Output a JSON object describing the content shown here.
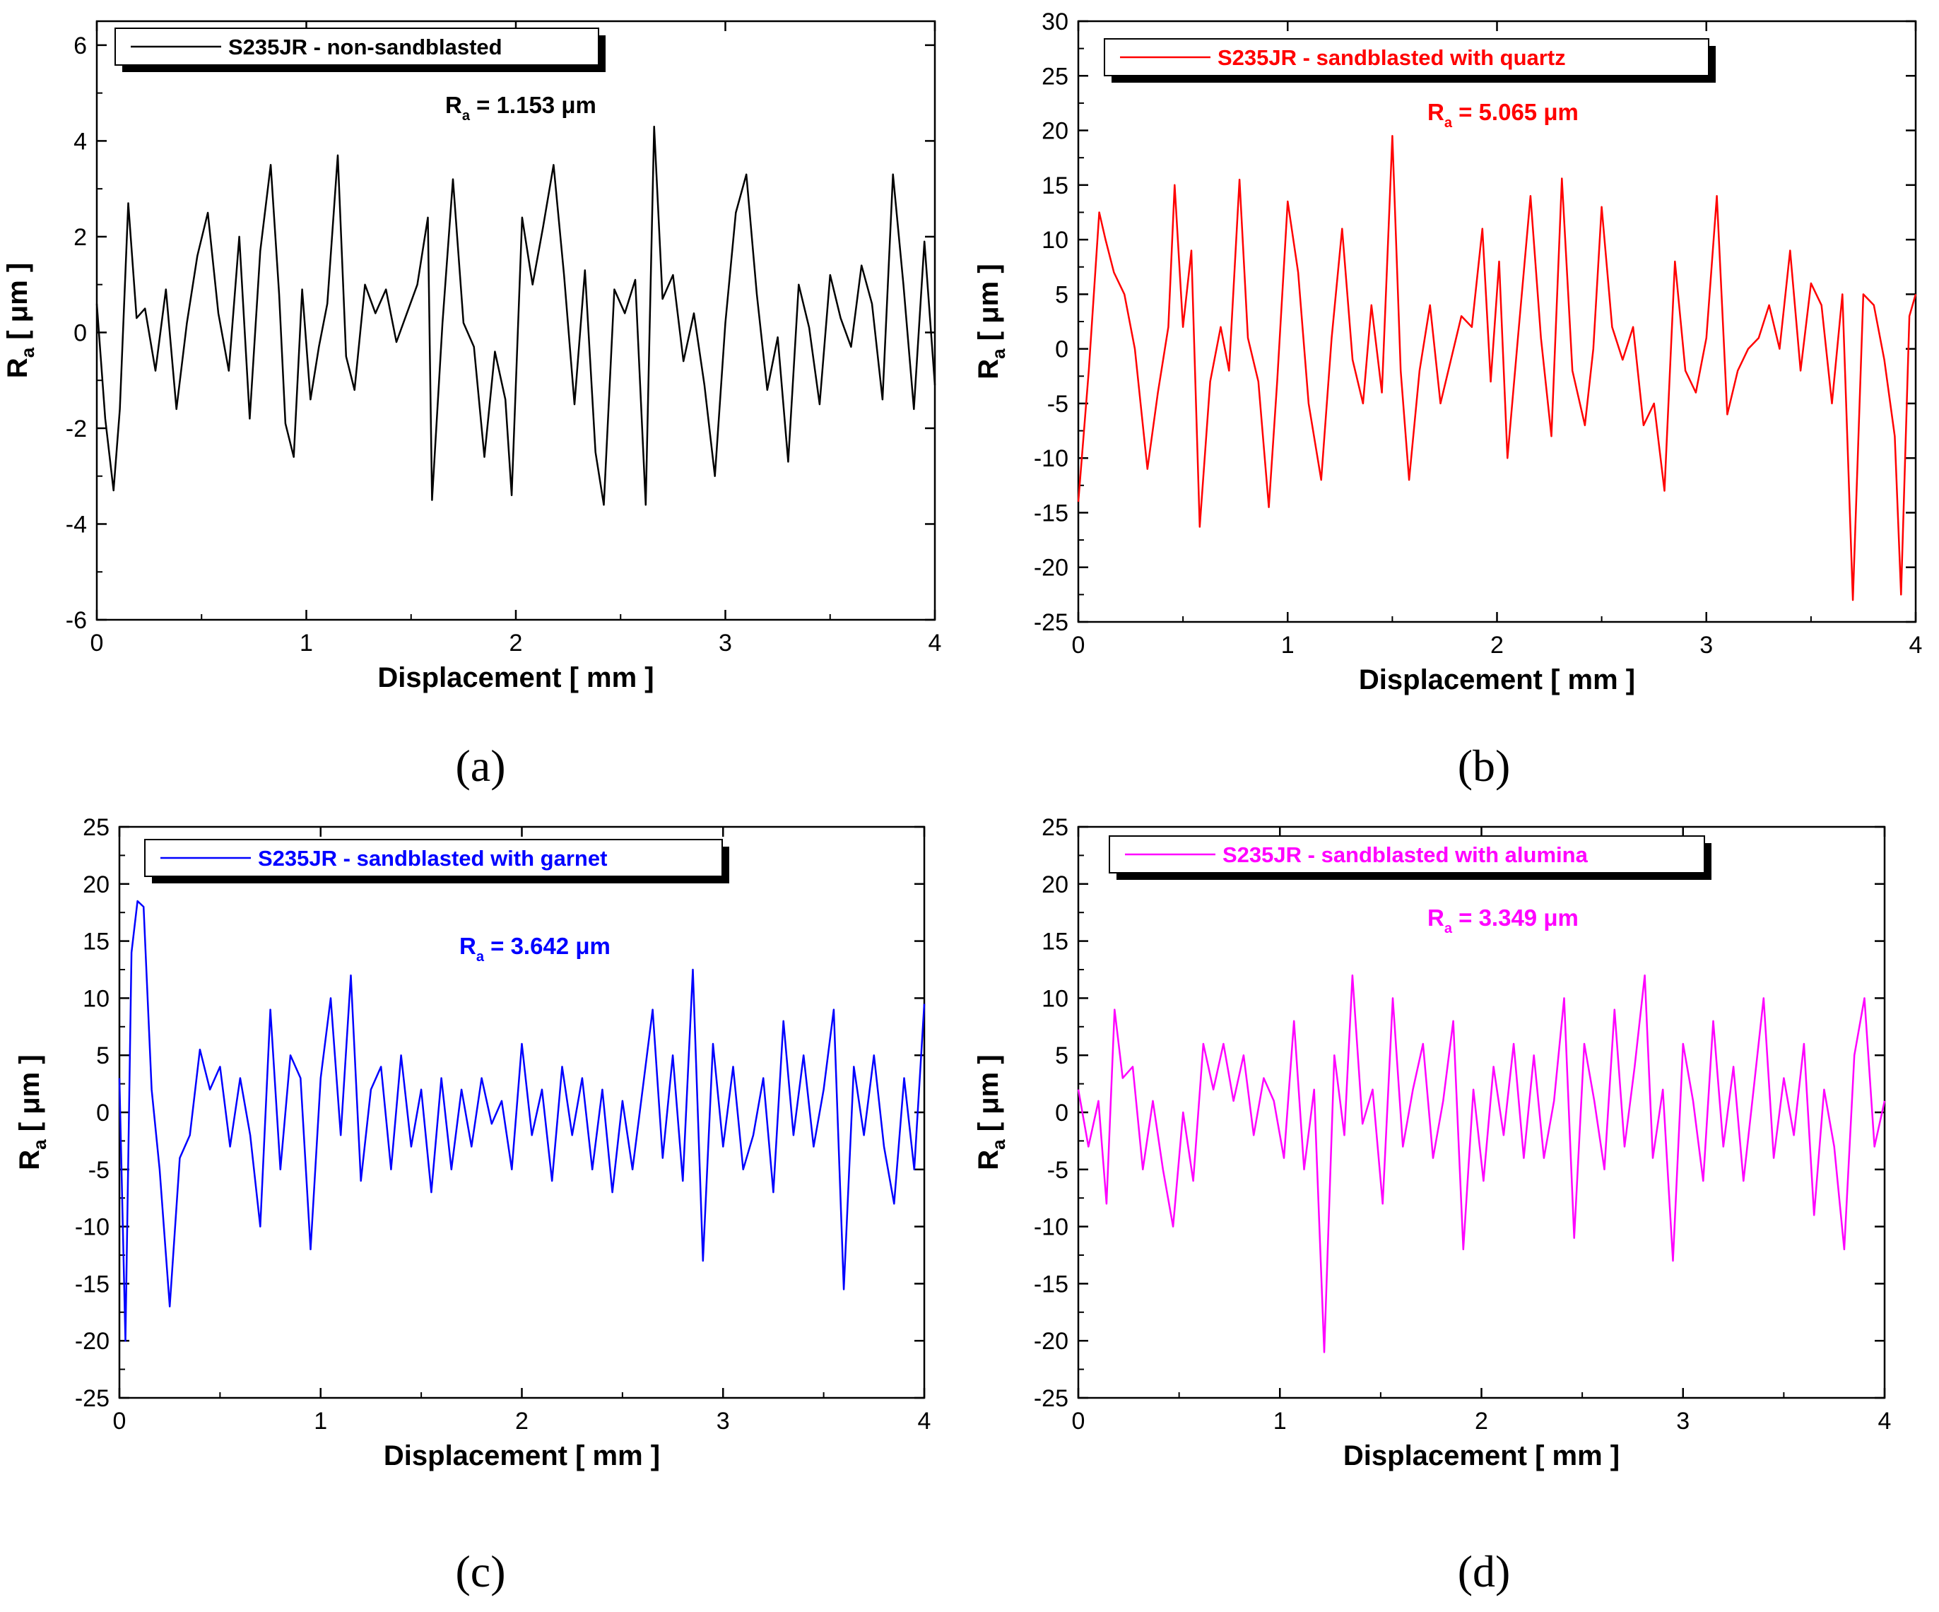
{
  "chart_data": [
    {
      "type": "line",
      "panel_label": "(a)",
      "legend": "S235JR - non-sandblasted",
      "color": "#000000",
      "ra_symbol": "R",
      "ra_sub": "a",
      "ra_value": " = 1.153 μm",
      "xlabel": "Displacement [ mm ]",
      "ylabel_main": "R",
      "ylabel_sub": "a",
      "ylabel_unit": " [ μm ]",
      "xlim": [
        0,
        4
      ],
      "ylim": [
        -6,
        6.5
      ],
      "xticks": [
        0,
        1,
        2,
        3,
        4
      ],
      "yticks": [
        -6,
        -4,
        -2,
        0,
        2,
        4,
        6
      ],
      "legend_position": "top-left",
      "series": [
        {
          "name": "S235JR - non-sandblasted",
          "x": [
            0,
            0.04,
            0.08,
            0.11,
            0.15,
            0.19,
            0.23,
            0.28,
            0.33,
            0.38,
            0.43,
            0.48,
            0.53,
            0.58,
            0.63,
            0.68,
            0.73,
            0.78,
            0.83,
            0.87,
            0.9,
            0.94,
            0.98,
            1.02,
            1.06,
            1.1,
            1.15,
            1.19,
            1.23,
            1.28,
            1.33,
            1.38,
            1.43,
            1.48,
            1.53,
            1.58,
            1.6,
            1.65,
            1.7,
            1.75,
            1.8,
            1.85,
            1.9,
            1.95,
            1.98,
            2.03,
            2.08,
            2.13,
            2.18,
            2.23,
            2.28,
            2.33,
            2.38,
            2.42,
            2.47,
            2.52,
            2.57,
            2.62,
            2.66,
            2.7,
            2.75,
            2.8,
            2.85,
            2.9,
            2.95,
            3.0,
            3.05,
            3.1,
            3.15,
            3.2,
            3.25,
            3.3,
            3.35,
            3.4,
            3.45,
            3.5,
            3.55,
            3.6,
            3.65,
            3.7,
            3.75,
            3.8,
            3.85,
            3.9,
            3.95,
            4.0
          ],
          "values": [
            0.6,
            -1.8,
            -3.3,
            -1.6,
            2.7,
            0.3,
            0.5,
            -0.8,
            0.9,
            -1.6,
            0.2,
            1.6,
            2.5,
            0.4,
            -0.8,
            2.0,
            -1.8,
            1.7,
            3.5,
            0.8,
            -1.9,
            -2.6,
            0.9,
            -1.4,
            -0.3,
            0.6,
            3.7,
            -0.5,
            -1.2,
            1.0,
            0.4,
            0.9,
            -0.2,
            0.4,
            1.0,
            2.4,
            -3.5,
            0.2,
            3.2,
            0.2,
            -0.3,
            -2.6,
            -0.4,
            -1.4,
            -3.4,
            2.4,
            1.0,
            2.2,
            3.5,
            1.2,
            -1.5,
            1.3,
            -2.5,
            -3.6,
            0.9,
            0.4,
            1.1,
            -3.6,
            4.3,
            0.7,
            1.2,
            -0.6,
            0.4,
            -1.1,
            -3.0,
            0.2,
            2.5,
            3.3,
            0.8,
            -1.2,
            -0.1,
            -2.7,
            1.0,
            0.1,
            -1.5,
            1.2,
            0.3,
            -0.3,
            1.4,
            0.6,
            -1.4,
            3.3,
            1.0,
            -1.6,
            1.9,
            -1.1
          ]
        }
      ]
    },
    {
      "type": "line",
      "panel_label": "(b)",
      "legend": "S235JR - sandblasted with quartz",
      "color": "#ff0000",
      "ra_symbol": "R",
      "ra_sub": "a",
      "ra_value": " = 5.065 μm",
      "xlabel": "Displacement [ mm ]",
      "ylabel_main": "R",
      "ylabel_sub": "a",
      "ylabel_unit": " [ μm ]",
      "xlim": [
        0,
        4
      ],
      "ylim": [
        -25,
        30
      ],
      "xticks": [
        0,
        1,
        2,
        3,
        4
      ],
      "yticks": [
        -25,
        -20,
        -15,
        -10,
        -5,
        0,
        5,
        10,
        15,
        20,
        25,
        30
      ],
      "legend_position": "top-left",
      "series": [
        {
          "name": "S235JR - sandblasted with quartz",
          "x": [
            0,
            0.05,
            0.1,
            0.13,
            0.17,
            0.22,
            0.27,
            0.33,
            0.38,
            0.43,
            0.46,
            0.5,
            0.54,
            0.58,
            0.63,
            0.68,
            0.72,
            0.77,
            0.81,
            0.86,
            0.91,
            0.95,
            1.0,
            1.05,
            1.1,
            1.16,
            1.21,
            1.26,
            1.31,
            1.36,
            1.4,
            1.45,
            1.5,
            1.54,
            1.58,
            1.63,
            1.68,
            1.73,
            1.78,
            1.83,
            1.88,
            1.93,
            1.97,
            2.01,
            2.05,
            2.1,
            2.16,
            2.21,
            2.26,
            2.31,
            2.36,
            2.42,
            2.46,
            2.5,
            2.55,
            2.6,
            2.65,
            2.7,
            2.75,
            2.8,
            2.85,
            2.9,
            2.95,
            3.0,
            3.05,
            3.1,
            3.15,
            3.2,
            3.25,
            3.3,
            3.35,
            3.4,
            3.45,
            3.5,
            3.55,
            3.6,
            3.65,
            3.7,
            3.75,
            3.8,
            3.85,
            3.9,
            3.93,
            3.97,
            4.0
          ],
          "values": [
            -14,
            -2,
            12.5,
            10,
            7,
            5,
            0,
            -11,
            -4,
            2,
            15,
            2,
            9,
            -16.3,
            -3,
            2,
            -2,
            15.5,
            1,
            -3,
            -14.5,
            -3,
            13.5,
            7,
            -5,
            -12,
            1,
            11,
            -1,
            -5,
            4,
            -4,
            19.5,
            -2,
            -12,
            -2,
            4,
            -5,
            -1,
            3,
            2,
            11,
            -3,
            8,
            -10,
            1,
            14,
            1,
            -8,
            15.6,
            -2,
            -7,
            0,
            13,
            2,
            -1,
            2,
            -7,
            -5,
            -13,
            8,
            -2,
            -4,
            1,
            14,
            -6,
            -2,
            0,
            1,
            4,
            0,
            9,
            -2,
            6,
            4,
            -5,
            5,
            -23,
            5,
            4,
            -1,
            -8,
            -22.5,
            3,
            5
          ]
        }
      ]
    },
    {
      "type": "line",
      "panel_label": "(c)",
      "legend": "S235JR - sandblasted with garnet",
      "color": "#0000ff",
      "ra_symbol": "R",
      "ra_sub": "a",
      "ra_value": " = 3.642 μm",
      "xlabel": "Displacement [ mm ]",
      "ylabel_main": "R",
      "ylabel_sub": "a",
      "ylabel_unit": " [ μm ]",
      "xlim": [
        0,
        4
      ],
      "ylim": [
        -25,
        25
      ],
      "xticks": [
        0,
        1,
        2,
        3,
        4
      ],
      "yticks": [
        -25,
        -20,
        -15,
        -10,
        -5,
        0,
        5,
        10,
        15,
        20,
        25
      ],
      "legend_position": "top-left",
      "series": [
        {
          "name": "S235JR - sandblasted with garnet",
          "x": [
            0,
            0.03,
            0.06,
            0.09,
            0.12,
            0.16,
            0.2,
            0.25,
            0.3,
            0.35,
            0.4,
            0.45,
            0.5,
            0.55,
            0.6,
            0.65,
            0.7,
            0.75,
            0.8,
            0.85,
            0.9,
            0.95,
            1.0,
            1.05,
            1.1,
            1.15,
            1.2,
            1.25,
            1.3,
            1.35,
            1.4,
            1.45,
            1.5,
            1.55,
            1.6,
            1.65,
            1.7,
            1.75,
            1.8,
            1.85,
            1.9,
            1.95,
            2.0,
            2.05,
            2.1,
            2.15,
            2.2,
            2.25,
            2.3,
            2.35,
            2.4,
            2.45,
            2.5,
            2.55,
            2.6,
            2.65,
            2.7,
            2.75,
            2.8,
            2.85,
            2.9,
            2.95,
            3.0,
            3.05,
            3.1,
            3.15,
            3.2,
            3.25,
            3.3,
            3.35,
            3.4,
            3.45,
            3.5,
            3.55,
            3.6,
            3.65,
            3.7,
            3.75,
            3.8,
            3.85,
            3.9,
            3.95,
            4.0
          ],
          "values": [
            3,
            -20,
            14,
            18.5,
            18,
            2,
            -5,
            -17,
            -4,
            -2,
            5.5,
            2,
            4,
            -3,
            3,
            -2,
            -10,
            9,
            -5,
            5,
            3,
            -12,
            3,
            10,
            -2,
            12,
            -6,
            2,
            4,
            -5,
            5,
            -3,
            2,
            -7,
            3,
            -5,
            2,
            -3,
            3,
            -1,
            1,
            -5,
            6,
            -2,
            2,
            -6,
            4,
            -2,
            3,
            -5,
            2,
            -7,
            1,
            -5,
            2,
            9,
            -4,
            5,
            -6,
            12.5,
            -13,
            6,
            -3,
            4,
            -5,
            -2,
            3,
            -7,
            8,
            -2,
            5,
            -3,
            2,
            9,
            -15.5,
            4,
            -2,
            5,
            -3,
            -8,
            3,
            -5,
            9.5
          ]
        }
      ]
    },
    {
      "type": "line",
      "panel_label": "(d)",
      "legend": "S235JR - sandblasted with alumina",
      "color": "#ff00ff",
      "ra_symbol": "R",
      "ra_sub": "a",
      "ra_value": " = 3.349 μm",
      "xlabel": "Displacement [ mm ]",
      "ylabel_main": "R",
      "ylabel_sub": "a",
      "ylabel_unit": " [ μm ]",
      "xlim": [
        0,
        4
      ],
      "ylim": [
        -25,
        25
      ],
      "xticks": [
        0,
        1,
        2,
        3,
        4
      ],
      "yticks": [
        -25,
        -20,
        -15,
        -10,
        -5,
        0,
        5,
        10,
        15,
        20,
        25
      ],
      "legend_position": "top-left",
      "series": [
        {
          "name": "S235JR - sandblasted with alumina",
          "x": [
            0,
            0.05,
            0.1,
            0.14,
            0.18,
            0.22,
            0.27,
            0.32,
            0.37,
            0.42,
            0.47,
            0.52,
            0.57,
            0.62,
            0.67,
            0.72,
            0.77,
            0.82,
            0.87,
            0.92,
            0.97,
            1.02,
            1.07,
            1.12,
            1.17,
            1.22,
            1.27,
            1.32,
            1.36,
            1.41,
            1.46,
            1.51,
            1.56,
            1.61,
            1.66,
            1.71,
            1.76,
            1.81,
            1.86,
            1.91,
            1.96,
            2.01,
            2.06,
            2.11,
            2.16,
            2.21,
            2.26,
            2.31,
            2.36,
            2.41,
            2.46,
            2.51,
            2.56,
            2.61,
            2.66,
            2.71,
            2.76,
            2.81,
            2.85,
            2.9,
            2.95,
            3.0,
            3.05,
            3.1,
            3.15,
            3.2,
            3.25,
            3.3,
            3.35,
            3.4,
            3.45,
            3.5,
            3.55,
            3.6,
            3.65,
            3.7,
            3.75,
            3.8,
            3.85,
            3.9,
            3.95,
            4.0
          ],
          "values": [
            2,
            -3,
            1,
            -8,
            9,
            3,
            4,
            -5,
            1,
            -5,
            -10,
            0,
            -6,
            6,
            2,
            6,
            1,
            5,
            -2,
            3,
            1,
            -4,
            8,
            -5,
            2,
            -21,
            5,
            -2,
            12,
            -1,
            2,
            -8,
            10,
            -3,
            2,
            6,
            -4,
            1,
            8,
            -12,
            2,
            -6,
            4,
            -2,
            6,
            -4,
            5,
            -4,
            1,
            10,
            -11,
            6,
            1,
            -5,
            9,
            -3,
            4,
            12,
            -4,
            2,
            -13,
            6,
            1,
            -6,
            8,
            -3,
            4,
            -6,
            2,
            10,
            -4,
            3,
            -2,
            6,
            -9,
            2,
            -3,
            -12,
            5,
            10,
            -3,
            1
          ]
        }
      ]
    }
  ]
}
